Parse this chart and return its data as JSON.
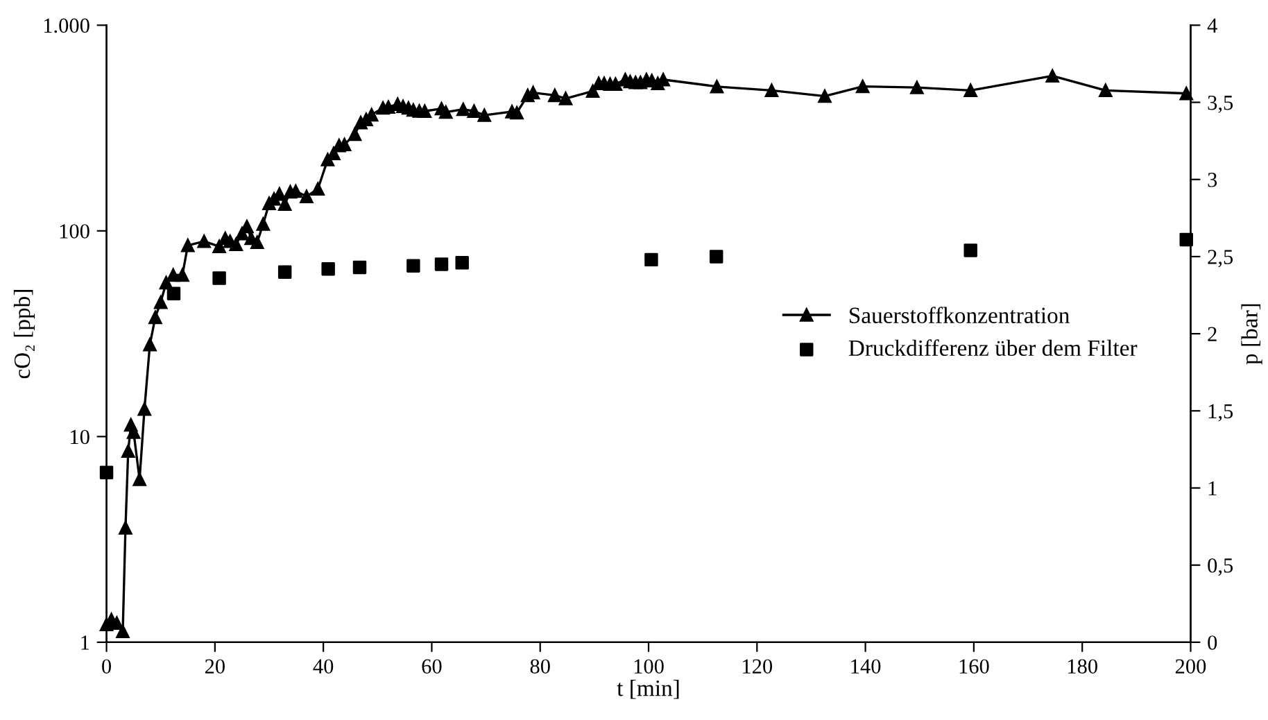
{
  "chart_data": {
    "type": "line",
    "xlabel": "t [min]",
    "ylabel": "cO₂ [ppb]",
    "y2label": "p [bar]",
    "log": "y",
    "grid": false,
    "legend": "right",
    "xlim": [
      0,
      200
    ],
    "xticks": [
      0,
      20,
      40,
      60,
      80,
      100,
      120,
      140,
      160,
      180,
      200
    ],
    "ylim": [
      1,
      1000
    ],
    "yticks": [
      1,
      10,
      100,
      {
        "value": 1000,
        "label": "1.000"
      }
    ],
    "y2lim": [
      0,
      4
    ],
    "y2ticks": [
      0,
      {
        "value": 0.5,
        "label": "0,5"
      },
      1,
      {
        "value": 1.5,
        "label": "1,5"
      },
      2,
      {
        "value": 2.5,
        "label": "2,5"
      },
      3,
      {
        "value": 3.5,
        "label": "3,5"
      },
      4
    ],
    "series": [
      {
        "name": "Sauerstoffkonzentration",
        "color": "#000000",
        "marker": "triangle",
        "line_style": "solid",
        "x": [
          0,
          0.9,
          1.9,
          3,
          3.5,
          4,
          4.5,
          5,
          6.1,
          7,
          8,
          9,
          10,
          11,
          12.3,
          14,
          15,
          18,
          20.8,
          21.9,
          22.8,
          23.9,
          25,
          25.9,
          26.7,
          27.8,
          28.9,
          30,
          30.9,
          31.9,
          32.9,
          33.9,
          34.9,
          36.9,
          39,
          40.8,
          41.9,
          42.9,
          43.9,
          45.8,
          46.9,
          47.9,
          48.9,
          51,
          52,
          53.7,
          54.7,
          55.7,
          56.6,
          57.7,
          58.7,
          61.8,
          62.6,
          65.8,
          67.8,
          69.7,
          74.8,
          75.7,
          77.7,
          78.7,
          82.7,
          84.7,
          89.7,
          90.8,
          91.8,
          92.9,
          93.9,
          95.7,
          96.6,
          97.6,
          98.5,
          99.6,
          100.6,
          101.7,
          102.7,
          112.6,
          122.7,
          132.5,
          139.5,
          149.5,
          159.4,
          174.5,
          184.3,
          199.2
        ],
        "values": [
          1.22,
          1.29,
          1.24,
          1.13,
          3.6,
          8.5,
          11.4,
          10.5,
          6.2,
          13.6,
          28,
          38,
          45,
          56,
          61,
          61,
          85,
          89,
          84,
          92,
          89,
          86,
          97,
          105,
          92,
          88,
          108,
          136,
          143,
          151,
          135,
          155,
          156,
          147,
          160,
          222,
          238,
          260,
          263,
          295,
          336,
          348,
          367,
          396,
          400,
          413,
          403,
          396,
          387,
          383,
          382,
          393,
          378,
          390,
          382,
          365,
          380,
          375,
          456,
          470,
          456,
          440,
          478,
          521,
          521,
          517,
          517,
          544,
          532,
          527,
          527,
          544,
          538,
          521,
          544,
          503,
          482,
          452,
          504,
          498,
          482,
          567,
          482,
          466
        ]
      },
      {
        "name": "Druckdifferenz über dem Filter",
        "type": "scatter",
        "axis": "y2",
        "color": "#000000",
        "marker": "square",
        "x": [
          0,
          12.4,
          20.8,
          32.9,
          40.9,
          46.7,
          56.6,
          61.8,
          65.6,
          100.5,
          112.5,
          159.4,
          199.2
        ],
        "values": [
          1.1,
          2.26,
          2.36,
          2.4,
          2.42,
          2.43,
          2.44,
          2.45,
          2.46,
          2.48,
          2.5,
          2.54,
          2.61
        ]
      }
    ]
  }
}
